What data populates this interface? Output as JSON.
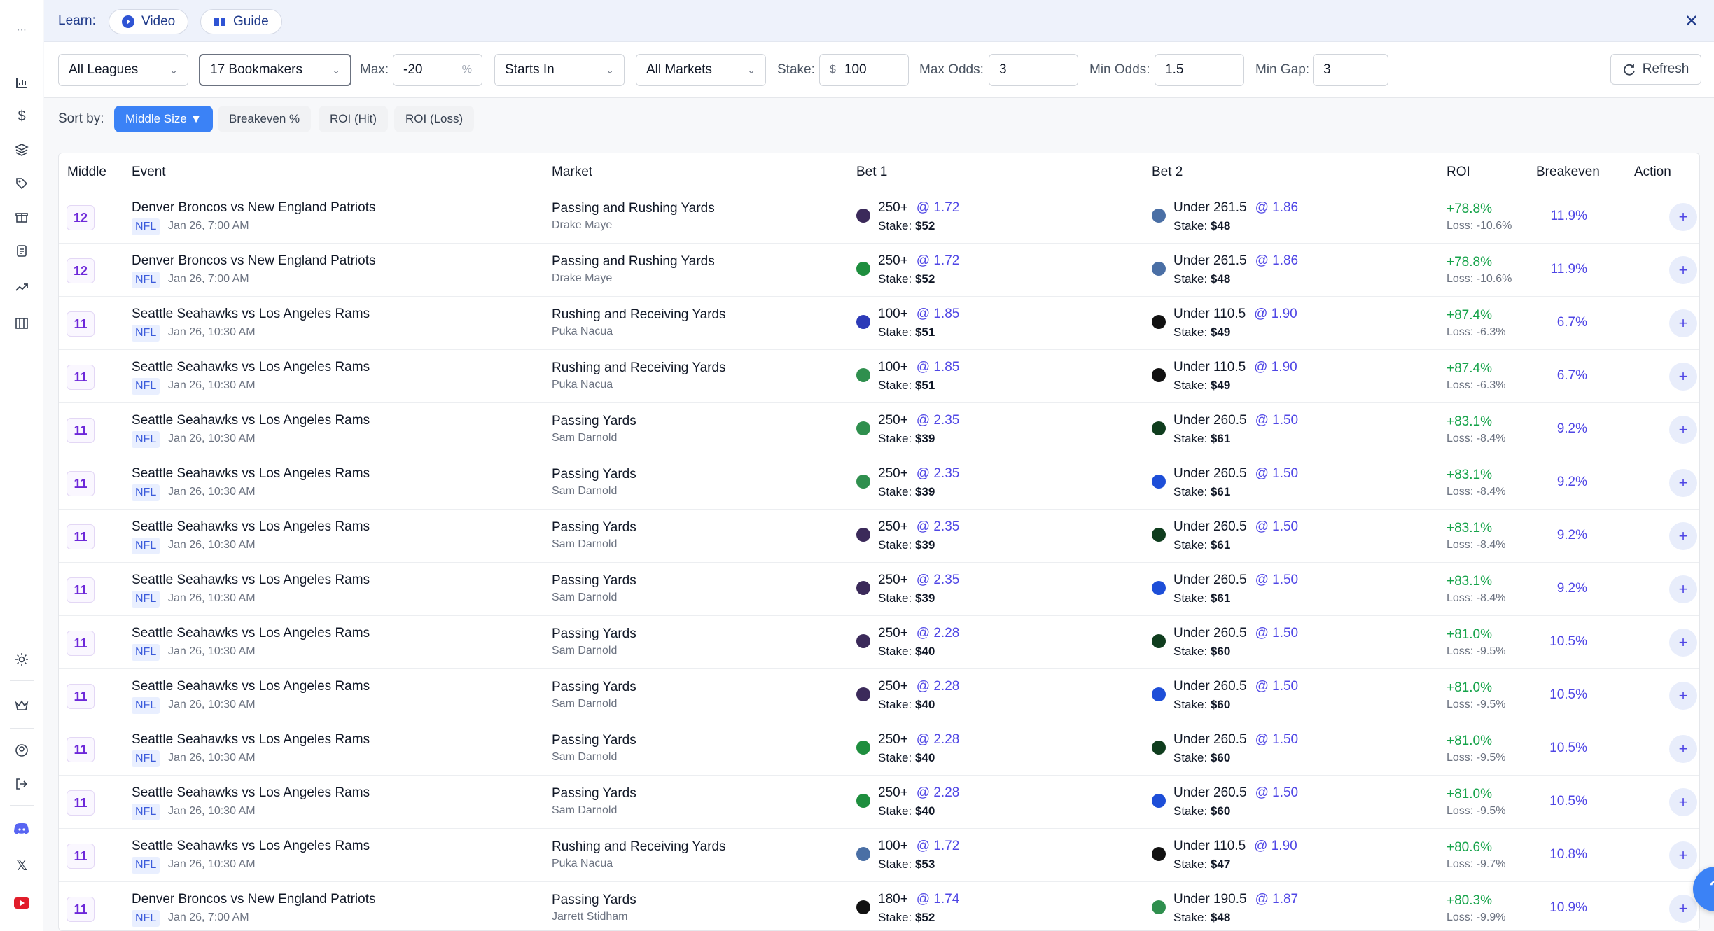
{
  "sidebar": {
    "icons": [
      "menu-icon",
      "chart-bar-icon",
      "dollar-icon",
      "layers-icon",
      "tag-icon",
      "gift-icon",
      "clipboard-icon",
      "trending-up-icon",
      "columns-icon",
      "sun-icon",
      "crown-icon",
      "user-icon",
      "logout-icon",
      "discord-icon",
      "x-icon",
      "youtube-icon"
    ]
  },
  "learn": {
    "label": "Learn:",
    "video": "Video",
    "guide": "Guide"
  },
  "toolbar": {
    "leagues": "All Leagues",
    "bookmakers": "17 Bookmakers",
    "max_label": "Max:",
    "max_value": "-20",
    "max_unit": "%",
    "starts_in": "Starts In",
    "markets": "All Markets",
    "stake_label": "Stake:",
    "stake_prefix": "$",
    "stake_value": "100",
    "max_odds_label": "Max Odds:",
    "max_odds_value": "3",
    "min_odds_label": "Min Odds:",
    "min_odds_value": "1.5",
    "min_gap_label": "Min Gap:",
    "min_gap_value": "3",
    "refresh": "Refresh"
  },
  "sort": {
    "label": "Sort by:",
    "options": [
      "Middle Size ▼",
      "Breakeven %",
      "ROI (Hit)",
      "ROI (Loss)"
    ]
  },
  "table": {
    "headers": [
      "Middle",
      "Event",
      "Market",
      "Bet 1",
      "Bet 2",
      "ROI",
      "Breakeven",
      "Action"
    ],
    "rows": [
      {
        "middle": "12",
        "event": "Denver Broncos vs New England Patriots",
        "league": "NFL",
        "date": "Jan 26, 7:00 AM",
        "market": "Passing and Rushing Yards",
        "player": "Drake Maye",
        "b1_line": "250+",
        "b1_odds": "@ 1.72",
        "b1_stake": "$52",
        "b1_color": "#3b2a5a",
        "b2_line": "Under 261.5",
        "b2_odds": "@ 1.86",
        "b2_stake": "$48",
        "b2_color": "#4a6fa5",
        "roi": "+78.8%",
        "loss": "Loss: -10.6%",
        "be": "11.9%"
      },
      {
        "middle": "12",
        "event": "Denver Broncos vs New England Patriots",
        "league": "NFL",
        "date": "Jan 26, 7:00 AM",
        "market": "Passing and Rushing Yards",
        "player": "Drake Maye",
        "b1_line": "250+",
        "b1_odds": "@ 1.72",
        "b1_stake": "$52",
        "b1_color": "#1e8e3e",
        "b2_line": "Under 261.5",
        "b2_odds": "@ 1.86",
        "b2_stake": "$48",
        "b2_color": "#4a6fa5",
        "roi": "+78.8%",
        "loss": "Loss: -10.6%",
        "be": "11.9%"
      },
      {
        "middle": "11",
        "event": "Seattle Seahawks vs Los Angeles Rams",
        "league": "NFL",
        "date": "Jan 26, 10:30 AM",
        "market": "Rushing and Receiving Yards",
        "player": "Puka Nacua",
        "b1_line": "100+",
        "b1_odds": "@ 1.85",
        "b1_stake": "$51",
        "b1_color": "#2d3bb8",
        "b2_line": "Under 110.5",
        "b2_odds": "@ 1.90",
        "b2_stake": "$49",
        "b2_color": "#111111",
        "roi": "+87.4%",
        "loss": "Loss: -6.3%",
        "be": "6.7%"
      },
      {
        "middle": "11",
        "event": "Seattle Seahawks vs Los Angeles Rams",
        "league": "NFL",
        "date": "Jan 26, 10:30 AM",
        "market": "Rushing and Receiving Yards",
        "player": "Puka Nacua",
        "b1_line": "100+",
        "b1_odds": "@ 1.85",
        "b1_stake": "$51",
        "b1_color": "#2f8f4e",
        "b2_line": "Under 110.5",
        "b2_odds": "@ 1.90",
        "b2_stake": "$49",
        "b2_color": "#111111",
        "roi": "+87.4%",
        "loss": "Loss: -6.3%",
        "be": "6.7%"
      },
      {
        "middle": "11",
        "event": "Seattle Seahawks vs Los Angeles Rams",
        "league": "NFL",
        "date": "Jan 26, 10:30 AM",
        "market": "Passing Yards",
        "player": "Sam Darnold",
        "b1_line": "250+",
        "b1_odds": "@ 2.35",
        "b1_stake": "$39",
        "b1_color": "#2f8f4e",
        "b2_line": "Under 260.5",
        "b2_odds": "@ 1.50",
        "b2_stake": "$61",
        "b2_color": "#0f3d1e",
        "roi": "+83.1%",
        "loss": "Loss: -8.4%",
        "be": "9.2%"
      },
      {
        "middle": "11",
        "event": "Seattle Seahawks vs Los Angeles Rams",
        "league": "NFL",
        "date": "Jan 26, 10:30 AM",
        "market": "Passing Yards",
        "player": "Sam Darnold",
        "b1_line": "250+",
        "b1_odds": "@ 2.35",
        "b1_stake": "$39",
        "b1_color": "#2f8f4e",
        "b2_line": "Under 260.5",
        "b2_odds": "@ 1.50",
        "b2_stake": "$61",
        "b2_color": "#1d4ed8",
        "roi": "+83.1%",
        "loss": "Loss: -8.4%",
        "be": "9.2%"
      },
      {
        "middle": "11",
        "event": "Seattle Seahawks vs Los Angeles Rams",
        "league": "NFL",
        "date": "Jan 26, 10:30 AM",
        "market": "Passing Yards",
        "player": "Sam Darnold",
        "b1_line": "250+",
        "b1_odds": "@ 2.35",
        "b1_stake": "$39",
        "b1_color": "#3b2a5a",
        "b2_line": "Under 260.5",
        "b2_odds": "@ 1.50",
        "b2_stake": "$61",
        "b2_color": "#0f3d1e",
        "roi": "+83.1%",
        "loss": "Loss: -8.4%",
        "be": "9.2%"
      },
      {
        "middle": "11",
        "event": "Seattle Seahawks vs Los Angeles Rams",
        "league": "NFL",
        "date": "Jan 26, 10:30 AM",
        "market": "Passing Yards",
        "player": "Sam Darnold",
        "b1_line": "250+",
        "b1_odds": "@ 2.35",
        "b1_stake": "$39",
        "b1_color": "#3b2a5a",
        "b2_line": "Under 260.5",
        "b2_odds": "@ 1.50",
        "b2_stake": "$61",
        "b2_color": "#1d4ed8",
        "roi": "+83.1%",
        "loss": "Loss: -8.4%",
        "be": "9.2%"
      },
      {
        "middle": "11",
        "event": "Seattle Seahawks vs Los Angeles Rams",
        "league": "NFL",
        "date": "Jan 26, 10:30 AM",
        "market": "Passing Yards",
        "player": "Sam Darnold",
        "b1_line": "250+",
        "b1_odds": "@ 2.28",
        "b1_stake": "$40",
        "b1_color": "#3b2a5a",
        "b2_line": "Under 260.5",
        "b2_odds": "@ 1.50",
        "b2_stake": "$60",
        "b2_color": "#0f3d1e",
        "roi": "+81.0%",
        "loss": "Loss: -9.5%",
        "be": "10.5%"
      },
      {
        "middle": "11",
        "event": "Seattle Seahawks vs Los Angeles Rams",
        "league": "NFL",
        "date": "Jan 26, 10:30 AM",
        "market": "Passing Yards",
        "player": "Sam Darnold",
        "b1_line": "250+",
        "b1_odds": "@ 2.28",
        "b1_stake": "$40",
        "b1_color": "#3b2a5a",
        "b2_line": "Under 260.5",
        "b2_odds": "@ 1.50",
        "b2_stake": "$60",
        "b2_color": "#1d4ed8",
        "roi": "+81.0%",
        "loss": "Loss: -9.5%",
        "be": "10.5%"
      },
      {
        "middle": "11",
        "event": "Seattle Seahawks vs Los Angeles Rams",
        "league": "NFL",
        "date": "Jan 26, 10:30 AM",
        "market": "Passing Yards",
        "player": "Sam Darnold",
        "b1_line": "250+",
        "b1_odds": "@ 2.28",
        "b1_stake": "$40",
        "b1_color": "#1e8e3e",
        "b2_line": "Under 260.5",
        "b2_odds": "@ 1.50",
        "b2_stake": "$60",
        "b2_color": "#0f3d1e",
        "roi": "+81.0%",
        "loss": "Loss: -9.5%",
        "be": "10.5%"
      },
      {
        "middle": "11",
        "event": "Seattle Seahawks vs Los Angeles Rams",
        "league": "NFL",
        "date": "Jan 26, 10:30 AM",
        "market": "Passing Yards",
        "player": "Sam Darnold",
        "b1_line": "250+",
        "b1_odds": "@ 2.28",
        "b1_stake": "$40",
        "b1_color": "#1e8e3e",
        "b2_line": "Under 260.5",
        "b2_odds": "@ 1.50",
        "b2_stake": "$60",
        "b2_color": "#1d4ed8",
        "roi": "+81.0%",
        "loss": "Loss: -9.5%",
        "be": "10.5%"
      },
      {
        "middle": "11",
        "event": "Seattle Seahawks vs Los Angeles Rams",
        "league": "NFL",
        "date": "Jan 26, 10:30 AM",
        "market": "Rushing and Receiving Yards",
        "player": "Puka Nacua",
        "b1_line": "100+",
        "b1_odds": "@ 1.72",
        "b1_stake": "$53",
        "b1_color": "#4a6fa5",
        "b2_line": "Under 110.5",
        "b2_odds": "@ 1.90",
        "b2_stake": "$47",
        "b2_color": "#111111",
        "roi": "+80.6%",
        "loss": "Loss: -9.7%",
        "be": "10.8%"
      },
      {
        "middle": "11",
        "event": "Denver Broncos vs New England Patriots",
        "league": "NFL",
        "date": "Jan 26, 7:00 AM",
        "market": "Passing Yards",
        "player": "Jarrett Stidham",
        "b1_line": "180+",
        "b1_odds": "@ 1.74",
        "b1_stake": "$52",
        "b1_color": "#111111",
        "b2_line": "Under 190.5",
        "b2_odds": "@ 1.87",
        "b2_stake": "$48",
        "b2_color": "#2f8f4e",
        "roi": "+80.3%",
        "loss": "Loss: -9.9%",
        "be": "10.9%"
      }
    ],
    "stake_label": "Stake:"
  },
  "colors": {
    "accent": "#3b82f6",
    "middle_text": "#6d28d9",
    "roi_green": "#16a34a",
    "odds": "#4f46e5"
  }
}
